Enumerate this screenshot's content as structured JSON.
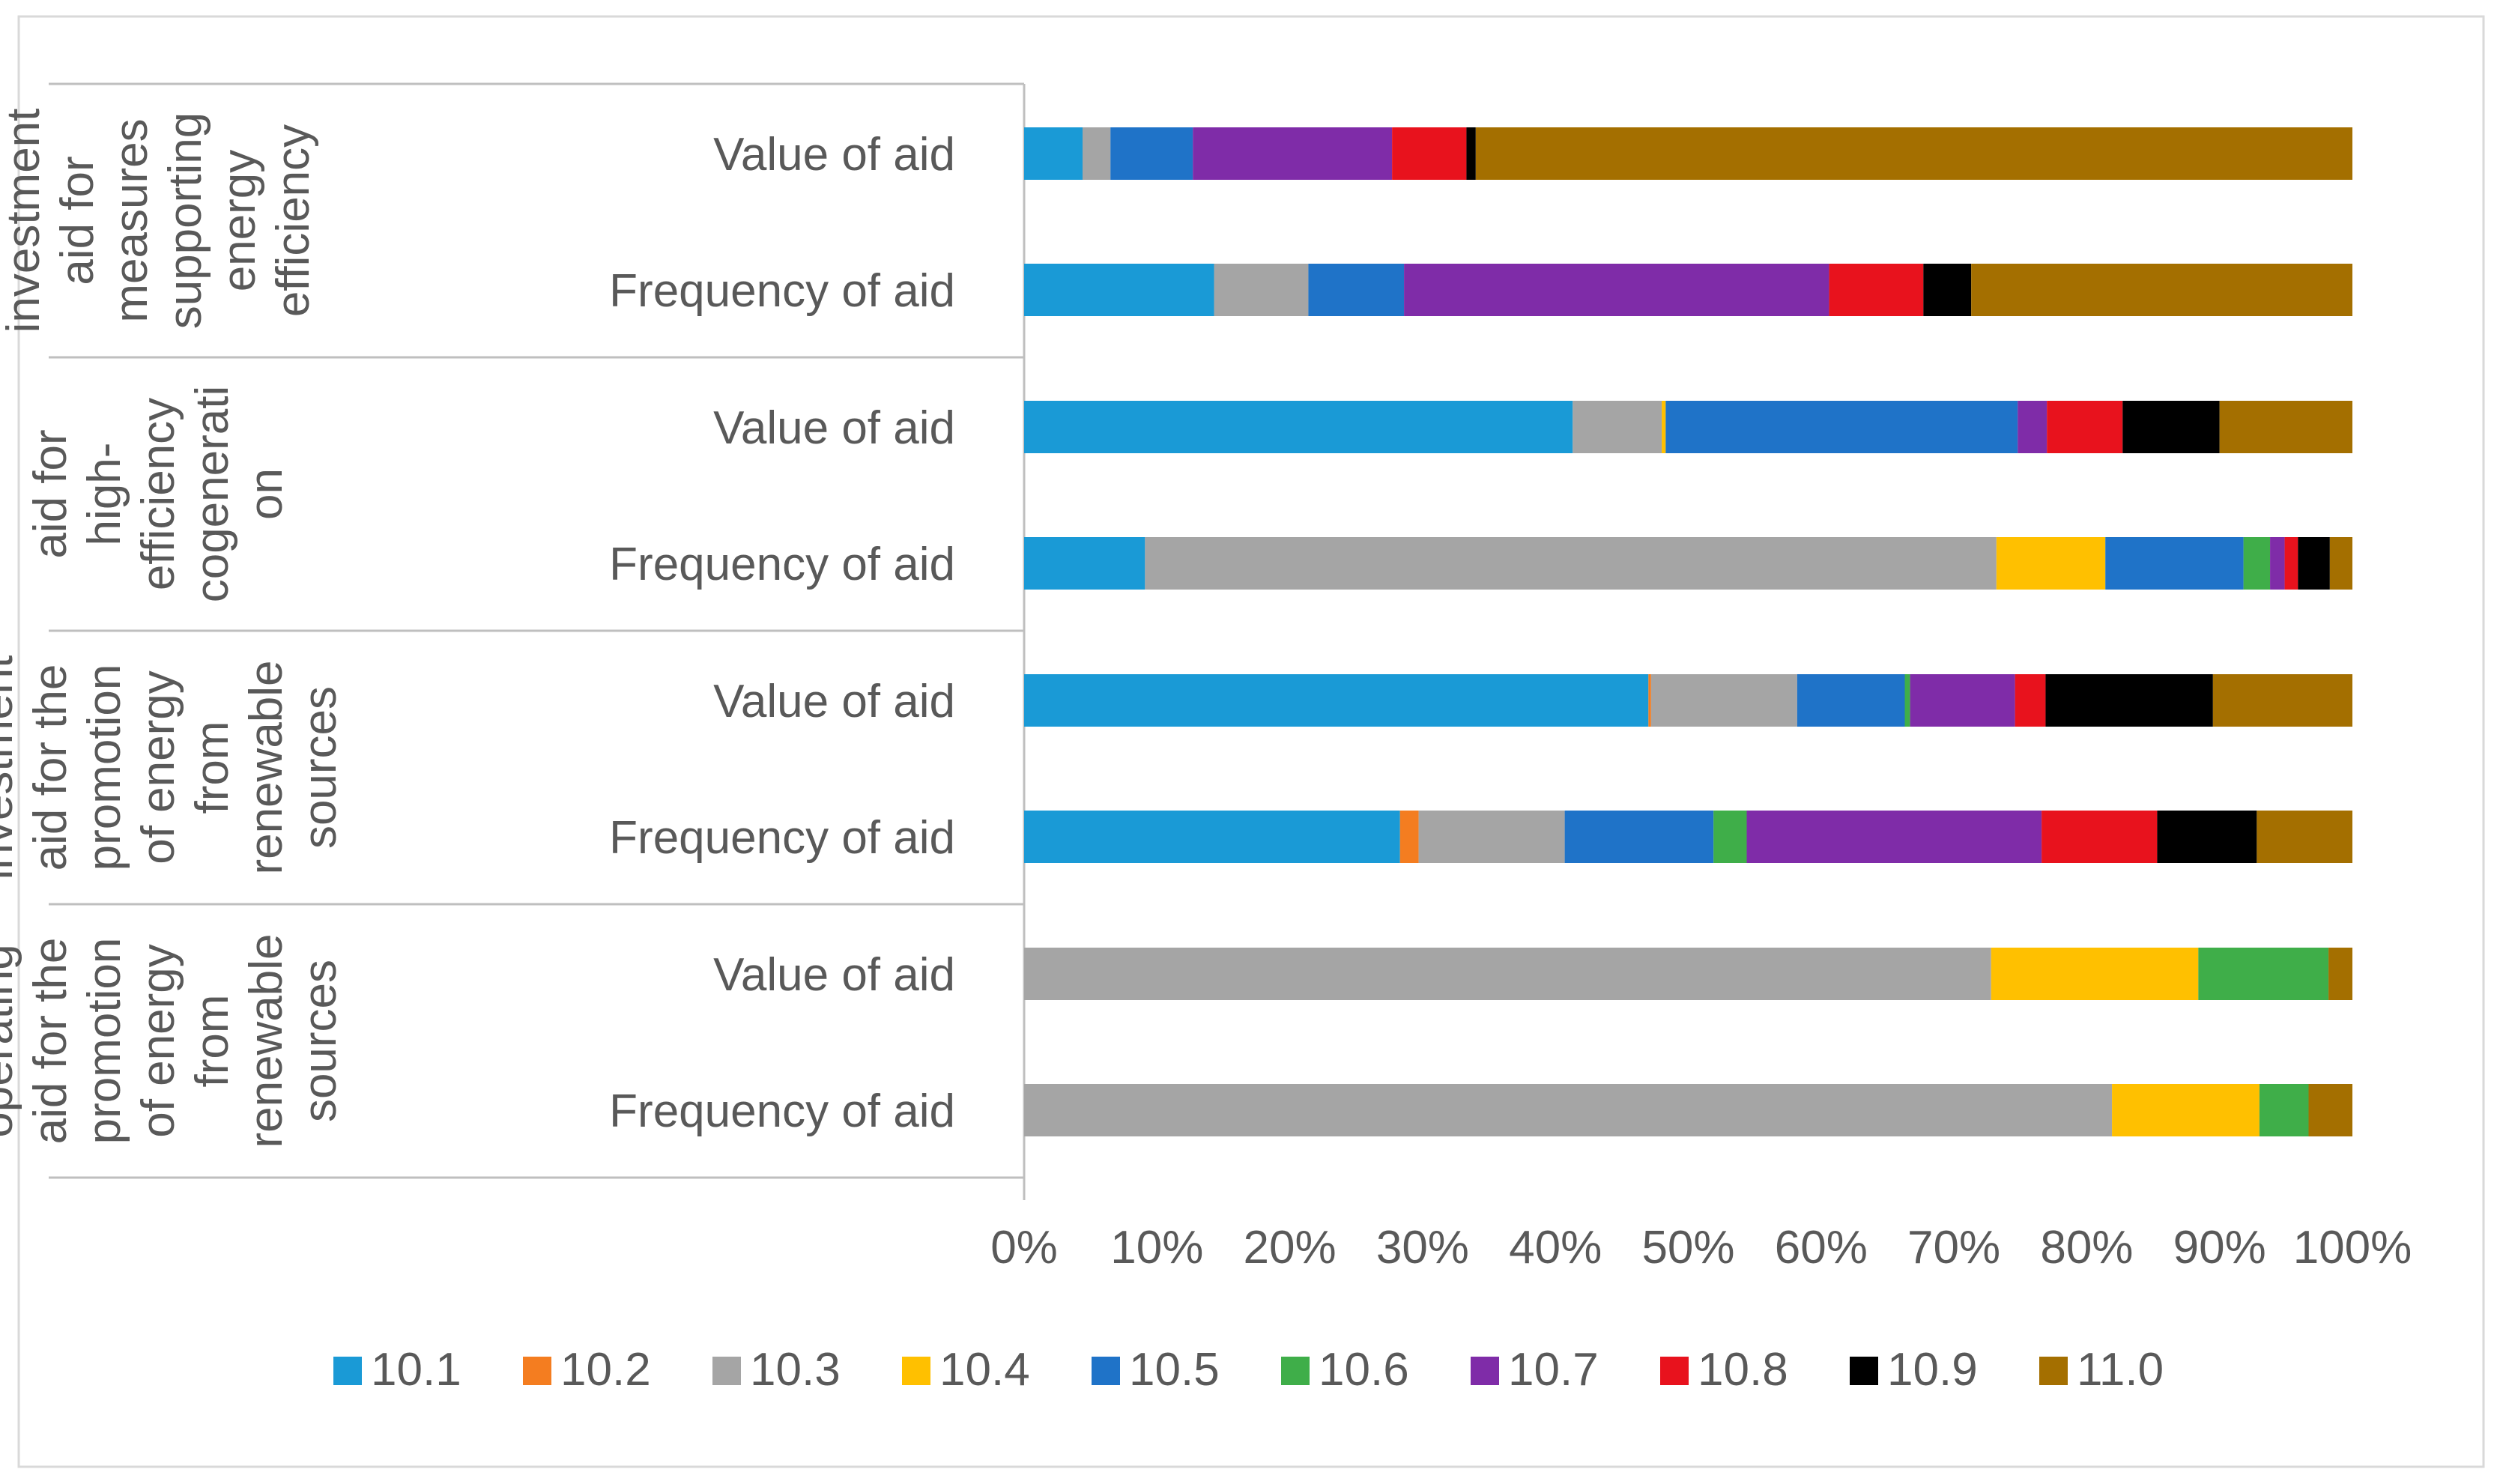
{
  "colors": {
    "10.1": "#1a9ad6",
    "10.2": "#f47d20",
    "10.3": "#a5a5a5",
    "10.4": "#ffc000",
    "10.5": "#1f73c8",
    "10.6": "#3fae49",
    "10.7": "#7f2ca8",
    "10.8": "#e8121d",
    "10.9": "#000000",
    "11.0": "#a46f00"
  },
  "chart_data": {
    "type": "bar",
    "orientation": "horizontal",
    "stacked": "percent",
    "title": "",
    "xlabel": "",
    "ylabel": "",
    "xlim": [
      0,
      100
    ],
    "x_ticks": [
      "0%",
      "10%",
      "20%",
      "30%",
      "40%",
      "50%",
      "60%",
      "70%",
      "80%",
      "90%",
      "100%"
    ],
    "legend_position": "bottom",
    "grid": false,
    "segments": [
      "10.1",
      "10.2",
      "10.3",
      "10.4",
      "10.5",
      "10.6",
      "10.7",
      "10.8",
      "10.9",
      "11.0"
    ],
    "groups": [
      {
        "label": [
          "investment",
          "aid for",
          "measures",
          "supporting",
          "energy",
          "efficiency"
        ],
        "rows": [
          {
            "label": "Value of aid",
            "values": [
              4.4,
              0,
              2.1,
              0,
              6.2,
              0,
              15.0,
              5.6,
              0.7,
              66.0
            ]
          },
          {
            "label": "Frequency of aid",
            "values": [
              14.3,
              0,
              7.1,
              0,
              7.2,
              0,
              32.0,
              7.1,
              3.6,
              28.7
            ]
          }
        ]
      },
      {
        "label": [
          "aid for",
          "high-",
          "efficiency",
          "cogenerati",
          "on"
        ],
        "rows": [
          {
            "label": "Value of aid",
            "values": [
              41.3,
              0,
              6.7,
              0.3,
              26.5,
              0,
              2.2,
              5.7,
              7.3,
              10.0
            ]
          },
          {
            "label": "Frequency of aid",
            "values": [
              9.1,
              0,
              64.1,
              8.2,
              10.4,
              2.0,
              1.1,
              1.0,
              2.4,
              1.7
            ]
          }
        ]
      },
      {
        "label": [
          "investment",
          "aid for the",
          "promotion",
          "of energy",
          "from",
          "renewable",
          "sources"
        ],
        "rows": [
          {
            "label": "Value of aid",
            "values": [
              47.0,
              0.2,
              11.0,
              0,
              8.1,
              0.4,
              7.9,
              2.3,
              12.6,
              10.5
            ]
          },
          {
            "label": "Frequency of aid",
            "values": [
              28.3,
              1.4,
              11.0,
              0,
              11.2,
              2.5,
              22.2,
              8.7,
              7.5,
              7.2
            ]
          }
        ]
      },
      {
        "label": [
          "operating",
          "aid for the",
          "promotion",
          "of energy",
          "from",
          "renewable",
          "sources"
        ],
        "rows": [
          {
            "label": "Value of aid",
            "values": [
              0,
              0,
              72.8,
              15.6,
              0,
              9.8,
              0,
              0,
              0,
              1.8
            ]
          },
          {
            "label": "Frequency of aid",
            "values": [
              0,
              0,
              81.9,
              11.1,
              0,
              3.7,
              0,
              0,
              0,
              3.3
            ]
          }
        ]
      }
    ]
  }
}
